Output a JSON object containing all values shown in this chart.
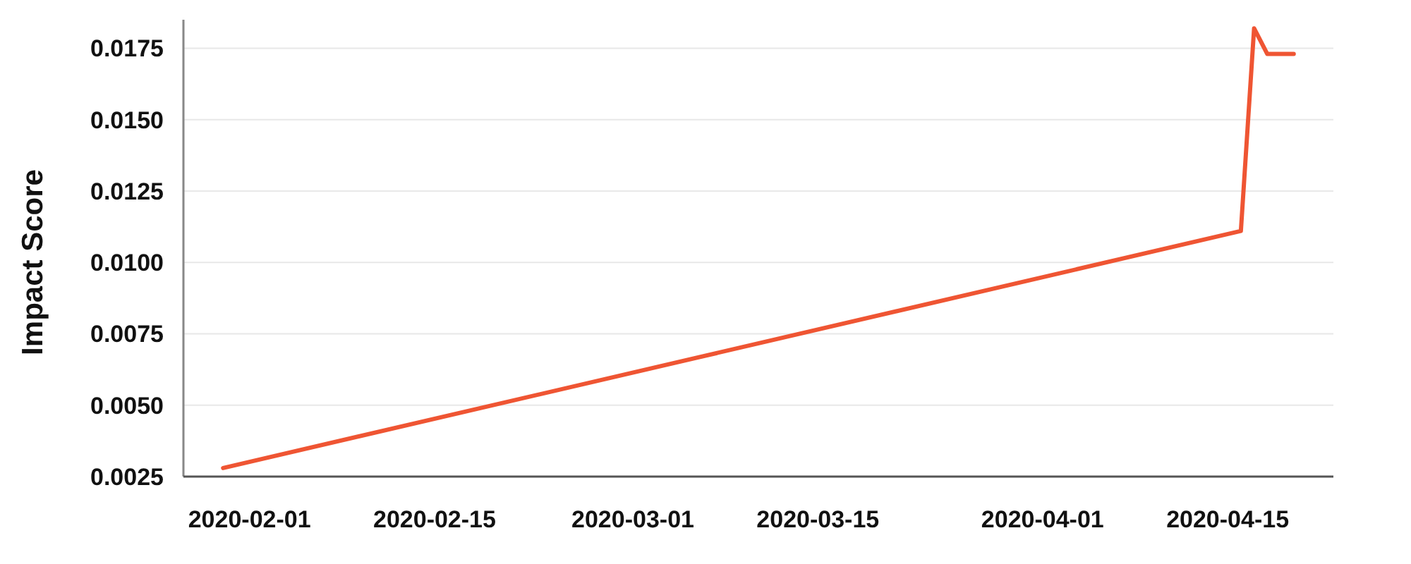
{
  "chart_data": {
    "type": "line",
    "ylabel": "Impact Score",
    "x": [
      "2020-01-30",
      "2020-04-16",
      "2020-04-17",
      "2020-04-18",
      "2020-04-20"
    ],
    "series": [
      {
        "color": "#ef5533",
        "values": [
          0.0028,
          0.0111,
          0.0182,
          0.0173,
          0.0173
        ]
      }
    ],
    "xlim": [
      "2020-01-27",
      "2020-04-23"
    ],
    "xticks": [
      {
        "value": "2020-02-01",
        "label": "2020-02-01"
      },
      {
        "value": "2020-02-15",
        "label": "2020-02-15"
      },
      {
        "value": "2020-03-01",
        "label": "2020-03-01"
      },
      {
        "value": "2020-03-15",
        "label": "2020-03-15"
      },
      {
        "value": "2020-04-01",
        "label": "2020-04-01"
      },
      {
        "value": "2020-04-15",
        "label": "2020-04-15"
      }
    ],
    "ylim": [
      0.0025,
      0.0185
    ],
    "yticks": [
      0.0025,
      {
        "value": 0.005,
        "label": "0.0050"
      },
      0.0075,
      {
        "value": 0.01,
        "label": "0.0100"
      },
      0.0125,
      {
        "value": 0.015,
        "label": "0.0150"
      },
      0.0175
    ],
    "grid": "y",
    "marker": "none",
    "line_style": "solid"
  }
}
